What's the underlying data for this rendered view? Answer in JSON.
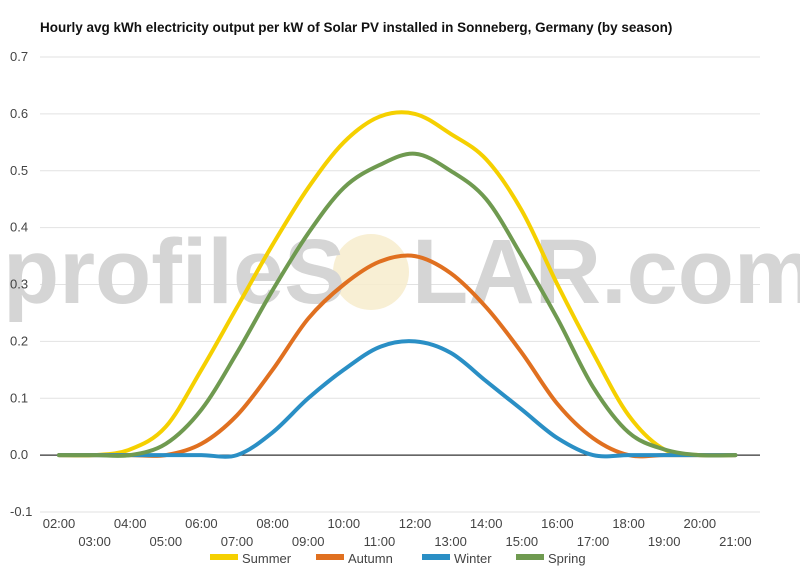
{
  "chart_data": {
    "type": "line",
    "title": "Hourly avg kWh electricity output per kW of Solar PV installed in Sonneberg, Germany (by season)",
    "xlabel": "",
    "ylabel": "",
    "ylim": [
      -0.1,
      0.7
    ],
    "yticks": [
      "-0.1",
      "0.0",
      "0.1",
      "0.2",
      "0.3",
      "0.4",
      "0.5",
      "0.6",
      "0.7"
    ],
    "categories": [
      "02:00",
      "03:00",
      "04:00",
      "05:00",
      "06:00",
      "07:00",
      "08:00",
      "09:00",
      "10:00",
      "11:00",
      "12:00",
      "13:00",
      "14:00",
      "15:00",
      "16:00",
      "17:00",
      "18:00",
      "19:00",
      "20:00",
      "21:00"
    ],
    "grid": true,
    "legend_position": "bottom",
    "series": [
      {
        "name": "Summer",
        "color": "#f5d000",
        "values": [
          0.0,
          0.0,
          0.01,
          0.05,
          0.15,
          0.26,
          0.37,
          0.47,
          0.55,
          0.595,
          0.6,
          0.565,
          0.52,
          0.43,
          0.3,
          0.18,
          0.07,
          0.01,
          0.0,
          0.0
        ]
      },
      {
        "name": "Autumn",
        "color": "#e07020",
        "values": [
          0.0,
          0.0,
          0.0,
          0.0,
          0.02,
          0.07,
          0.15,
          0.24,
          0.3,
          0.34,
          0.35,
          0.32,
          0.26,
          0.18,
          0.09,
          0.03,
          0.0,
          0.0,
          0.0,
          0.0
        ]
      },
      {
        "name": "Winter",
        "color": "#2a8fc5",
        "values": [
          0.0,
          0.0,
          0.0,
          0.0,
          0.0,
          0.0,
          0.04,
          0.1,
          0.15,
          0.19,
          0.2,
          0.18,
          0.13,
          0.08,
          0.03,
          0.0,
          0.0,
          0.0,
          0.0,
          0.0
        ]
      },
      {
        "name": "Spring",
        "color": "#6f9a50",
        "values": [
          0.0,
          0.0,
          0.0,
          0.02,
          0.08,
          0.18,
          0.29,
          0.39,
          0.47,
          0.51,
          0.53,
          0.5,
          0.45,
          0.35,
          0.24,
          0.12,
          0.04,
          0.01,
          0.0,
          0.0
        ]
      }
    ]
  },
  "watermark": {
    "text_left": "profileS",
    "text_right": "LAR.com"
  }
}
